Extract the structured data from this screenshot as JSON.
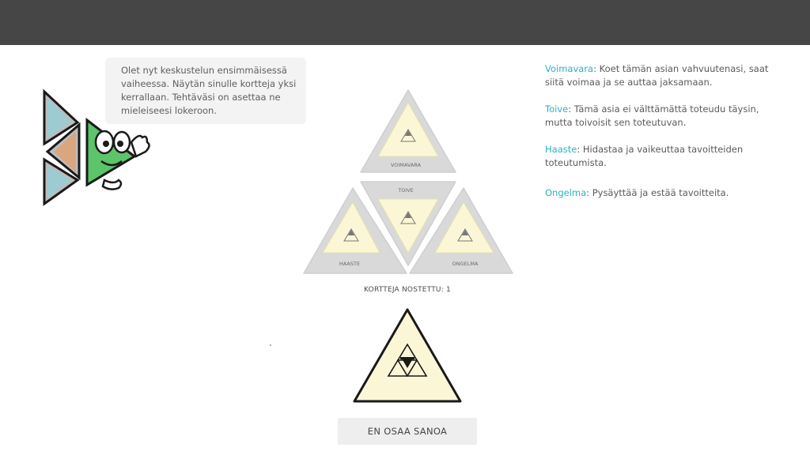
{
  "intro_text": "Olet nyt keskustelun ensimmäisessä vaiheessa. Näytän sinulle kortteja yksi kerrallaan. Tehtäväsi on asettaa ne mieleiseesi lokeroon.",
  "board": {
    "top_label": "VOIMAVARA",
    "center_label": "TOIVE",
    "left_label": "HAASTE",
    "right_label": "ONGELMA"
  },
  "counter_text": "KORTTEJA NOSTETTU: 1",
  "dont_know_button": "EN OSAA SANOA",
  "legend": [
    {
      "term": "Voimavara",
      "text": ": Koet tämän asian vahvuutenasi, saat siitä voimaa ja se auttaa jaksamaan."
    },
    {
      "term": "Toive",
      "text": ": Tämä asia ei välttämättä toteudu täysin, mutta toivoisit sen toteutuvan."
    },
    {
      "term": "Haaste",
      "text": ": Hidastaa ja vaikeuttaa tavoitteiden toteutumista."
    },
    {
      "term": "Ongelma",
      "text": ": Pysäyttää ja estää tavoitteita."
    }
  ],
  "colors": {
    "top_bar": "#464646",
    "legend_term": "#29b3bf",
    "slot_fill": "#fbf7d6",
    "card_fill": "#fbf7d6",
    "frame_gray": "#d4d4d4"
  },
  "icons": [
    "mascot-illustration",
    "triforce-icon"
  ]
}
